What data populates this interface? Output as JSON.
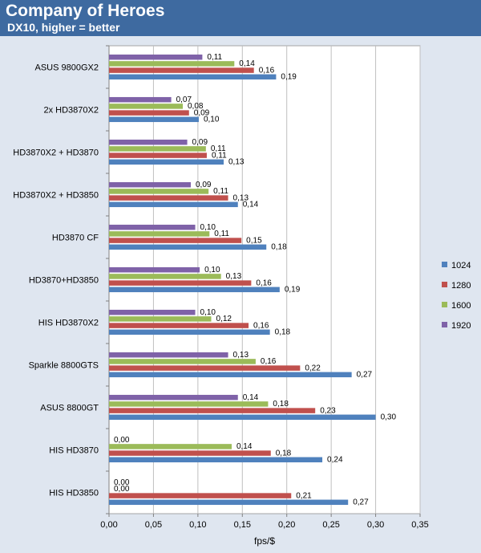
{
  "chart_data": {
    "type": "bar",
    "orientation": "horizontal",
    "title": "Company of Heroes",
    "subtitle": "DX10, higher = better",
    "xlabel": "fps/$",
    "ylabel": "",
    "xlim": [
      0,
      0.35
    ],
    "xticks": [
      "0,00",
      "0,05",
      "0,10",
      "0,15",
      "0,20",
      "0,25",
      "0,30",
      "0,35"
    ],
    "grid": true,
    "legend_position": "right",
    "categories": [
      "ASUS 9800GX2",
      "2x HD3870X2",
      "HD3870X2 + HD3870",
      "HD3870X2 + HD3850",
      "HD3870 CF",
      "HD3870+HD3850",
      "HIS HD3870X2",
      "Sparkle 8800GTS",
      "ASUS 8800GT",
      "HIS HD3870",
      "HIS HD3850"
    ],
    "series": [
      {
        "name": "1920",
        "color": "#7f62a8",
        "values": [
          0.105,
          0.07,
          0.088,
          0.092,
          0.097,
          0.102,
          0.097,
          0.134,
          0.145,
          0,
          0
        ],
        "labels": [
          "0,11",
          "0,07",
          "0,09",
          "0,09",
          "0,10",
          "0,10",
          "0,10",
          "0,13",
          "0,14",
          "0,00",
          "0,00"
        ]
      },
      {
        "name": "1600",
        "color": "#9bbb59",
        "values": [
          0.141,
          0.083,
          0.109,
          0.112,
          0.113,
          0.126,
          0.115,
          0.165,
          0.179,
          0.138,
          0
        ],
        "labels": [
          "0,14",
          "0,08",
          "0,11",
          "0,11",
          "0,11",
          "0,13",
          "0,12",
          "0,16",
          "0,18",
          "0,14",
          "0,00"
        ]
      },
      {
        "name": "1280",
        "color": "#c0504d",
        "values": [
          0.163,
          0.09,
          0.11,
          0.134,
          0.149,
          0.16,
          0.157,
          0.215,
          0.232,
          0.182,
          0.205
        ],
        "labels": [
          "0,16",
          "0,09",
          "0,11",
          "0,13",
          "0,15",
          "0,16",
          "0,16",
          "0,22",
          "0,23",
          "0,18",
          "0,21"
        ]
      },
      {
        "name": "1024",
        "color": "#4f81bd",
        "values": [
          0.188,
          0.101,
          0.129,
          0.145,
          0.177,
          0.192,
          0.181,
          0.273,
          0.3,
          0.24,
          0.269
        ],
        "labels": [
          "0,19",
          "0,10",
          "0,13",
          "0,14",
          "0,18",
          "0,19",
          "0,18",
          "0,27",
          "0,30",
          "0,24",
          "0,27"
        ]
      }
    ]
  }
}
